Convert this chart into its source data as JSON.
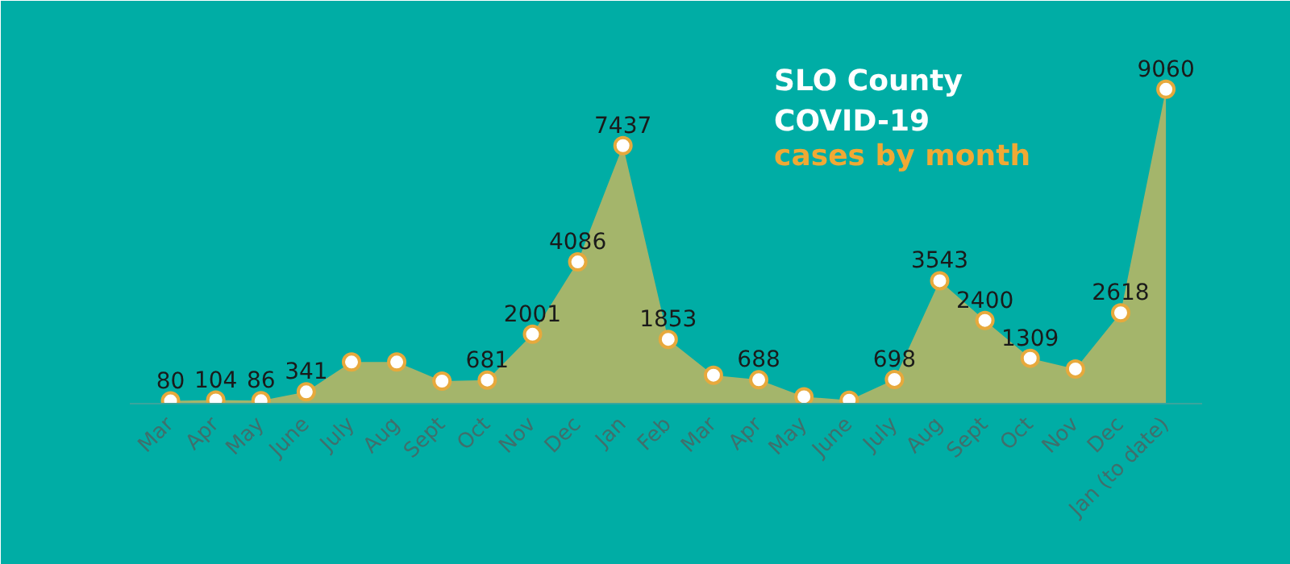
{
  "chart_data": {
    "type": "area",
    "title": "SLO County\nCOVID-19",
    "subtitle": "cases by month",
    "categories": [
      "Mar",
      "Apr",
      "May",
      "June",
      "July",
      "Aug",
      "Sept",
      "Oct",
      "Nov",
      "Dec",
      "Jan",
      "Feb",
      "Mar",
      "Apr",
      "May",
      "June",
      "July",
      "Aug",
      "Sept",
      "Oct",
      "Nov",
      "Dec",
      "Jan (to date)"
    ],
    "series": [
      {
        "color": "#a4b56b",
        "values": [
          80,
          104,
          86,
          341,
          1200,
          1200,
          650,
          681,
          2001,
          4086,
          7437,
          1853,
          820,
          688,
          200,
          100,
          698,
          3543,
          2400,
          1309,
          1000,
          2618,
          9060
        ],
        "value_labels": [
          "80",
          "104",
          "86",
          "341",
          null,
          null,
          null,
          "681",
          "2001",
          "4086",
          "7437",
          "1853",
          null,
          "688",
          null,
          null,
          "698",
          "3543",
          "2400",
          "1309",
          null,
          "2618",
          "9060"
        ]
      }
    ],
    "marker": "circle",
    "grid": false,
    "tick_labels": "x"
  }
}
